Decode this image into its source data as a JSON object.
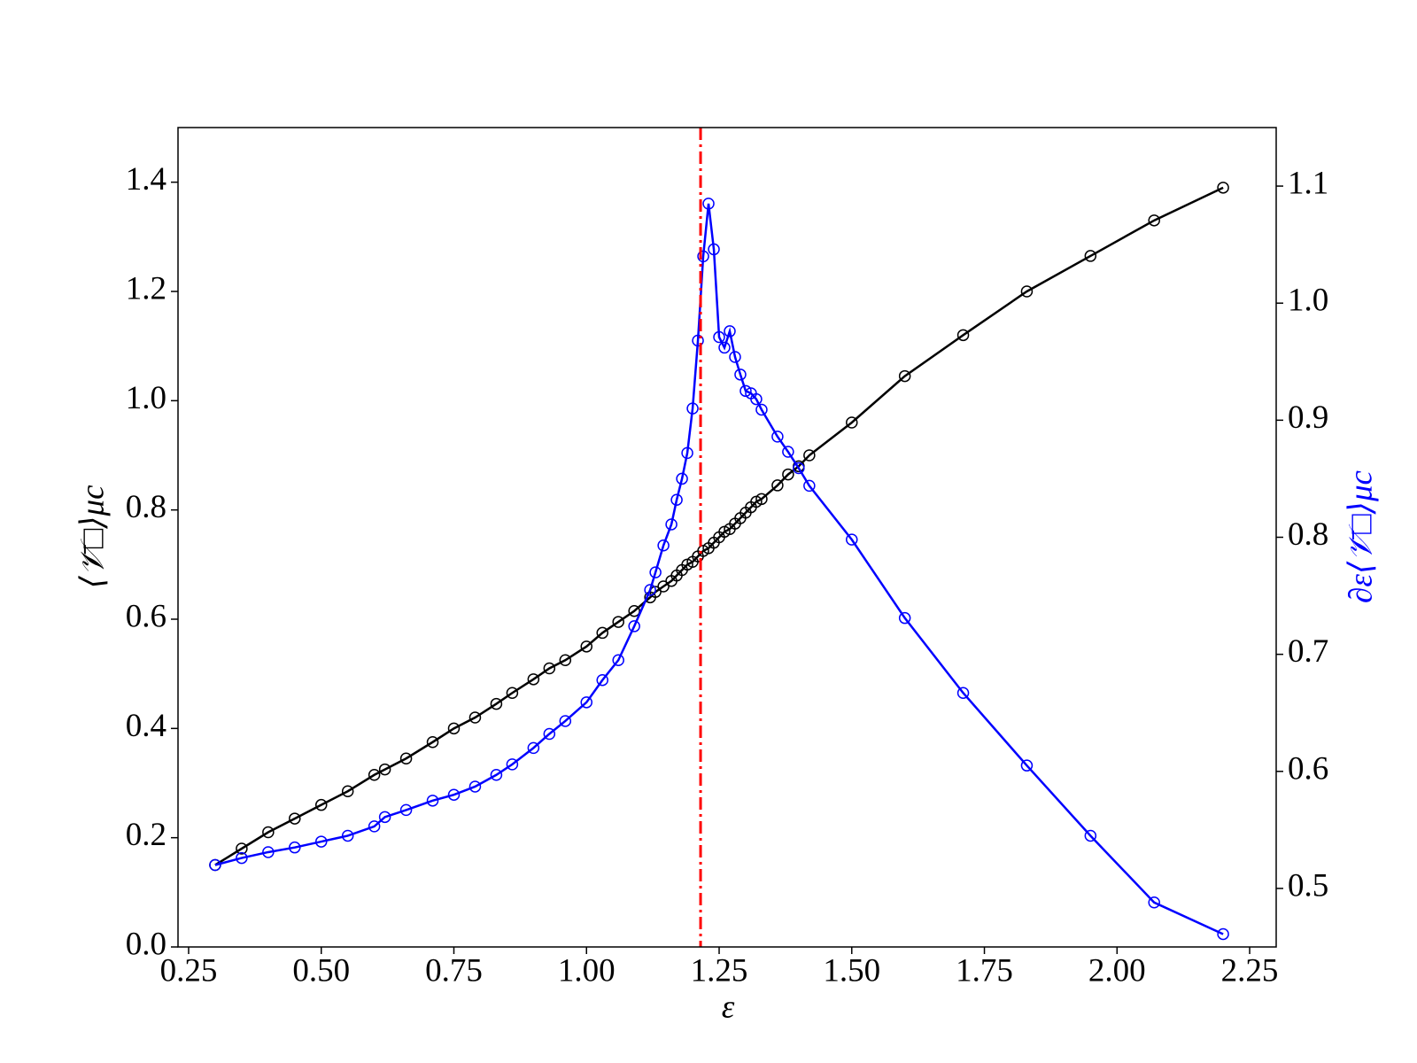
{
  "chart_data": {
    "type": "line",
    "x_label": "ε",
    "y_label": "⟨𝒱̄□⟩μc",
    "y2_label": "∂ε⟨𝒱̄□⟩μc",
    "xlim": [
      0.23,
      2.3
    ],
    "ylim": [
      0,
      1.5
    ],
    "y2lim": [
      0.45,
      1.15
    ],
    "xticks": [
      0.25,
      {
        "value": 0.5,
        "label": "0.50"
      },
      0.75,
      {
        "value": 1,
        "label": "1.00"
      },
      1.25,
      {
        "value": 1.5,
        "label": "1.50"
      },
      1.75,
      {
        "value": 2,
        "label": "2.00"
      },
      2.25
    ],
    "yticks": [
      {
        "value": 0,
        "label": "0.0"
      },
      0.2,
      0.4,
      0.6,
      0.8,
      {
        "value": 1,
        "label": "1.0"
      },
      1.2,
      1.4
    ],
    "y2ticks": [
      0.5,
      0.6,
      0.7,
      0.8,
      0.9,
      {
        "value": 1,
        "label": "1.0"
      },
      1.1
    ],
    "vline": {
      "x": 1.215,
      "color": "#ff0000"
    },
    "x": [
      0.3,
      0.35,
      0.4,
      0.45,
      0.5,
      0.55,
      0.6,
      0.62,
      0.66,
      0.71,
      0.75,
      0.79,
      0.83,
      0.86,
      0.9,
      0.93,
      0.96,
      1.0,
      1.03,
      1.06,
      1.09,
      1.12,
      1.13,
      1.145,
      1.16,
      1.17,
      1.18,
      1.19,
      1.2,
      1.21,
      1.22,
      1.23,
      1.24,
      1.25,
      1.26,
      1.27,
      1.28,
      1.29,
      1.3,
      1.31,
      1.32,
      1.33,
      1.36,
      1.38,
      1.4,
      1.42,
      1.5,
      1.6,
      1.71,
      1.83,
      1.95,
      2.07,
      2.2
    ],
    "series": [
      {
        "color": "#000000",
        "axis": "y",
        "values": [
          0.15,
          0.18,
          0.21,
          0.235,
          0.26,
          0.285,
          0.315,
          0.325,
          0.345,
          0.375,
          0.4,
          0.42,
          0.445,
          0.465,
          0.49,
          0.51,
          0.525,
          0.55,
          0.575,
          0.595,
          0.615,
          0.64,
          0.65,
          0.66,
          0.67,
          0.68,
          0.69,
          0.7,
          0.705,
          0.715,
          0.725,
          0.73,
          0.74,
          0.75,
          0.76,
          0.765,
          0.775,
          0.785,
          0.795,
          0.805,
          0.815,
          0.82,
          0.845,
          0.865,
          0.88,
          0.9,
          0.96,
          1.045,
          1.12,
          1.2,
          1.265,
          1.33,
          1.39
        ]
      },
      {
        "color": "#0000ff",
        "axis": "y2",
        "values": [
          0.52,
          0.526,
          0.531,
          0.535,
          0.54,
          0.545,
          0.553,
          0.561,
          0.567,
          0.575,
          0.58,
          0.587,
          0.597,
          0.606,
          0.62,
          0.632,
          0.643,
          0.659,
          0.678,
          0.695,
          0.724,
          0.755,
          0.77,
          0.793,
          0.811,
          0.832,
          0.85,
          0.872,
          0.91,
          0.968,
          1.04,
          1.085,
          1.046,
          0.971,
          0.962,
          0.976,
          0.954,
          0.939,
          0.925,
          0.923,
          0.918,
          0.909,
          0.886,
          0.873,
          0.859,
          0.844,
          0.798,
          0.731,
          0.667,
          0.605,
          0.545,
          0.488,
          0.461
        ]
      }
    ]
  }
}
